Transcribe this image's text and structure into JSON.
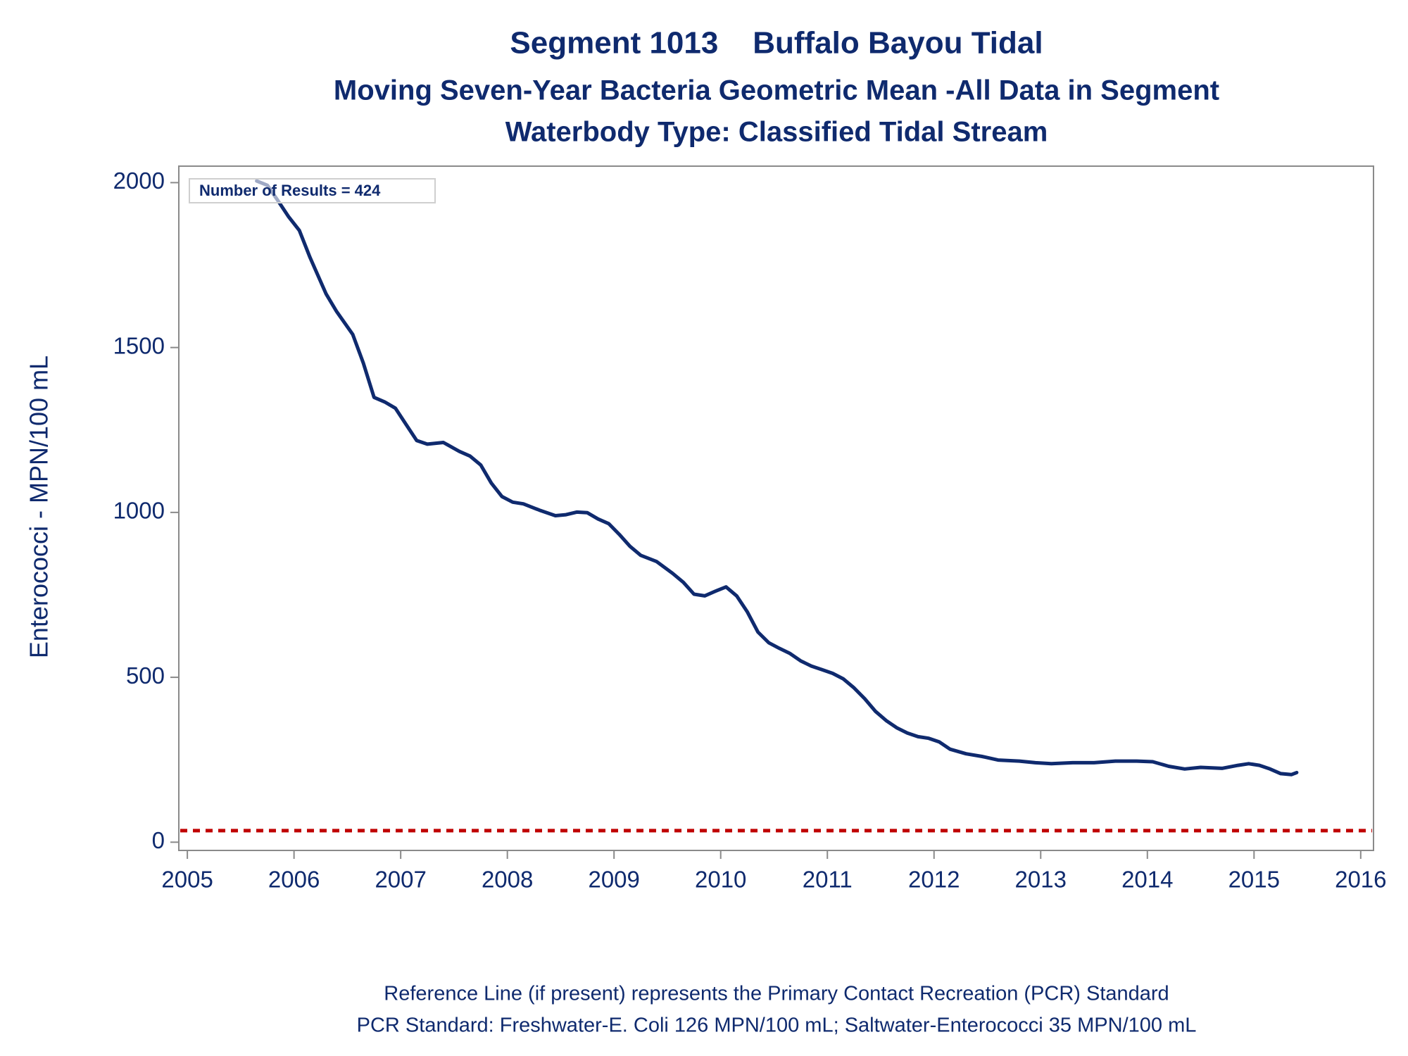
{
  "chart_data": {
    "type": "line",
    "title": "Segment 1013    Buffalo Bayou Tidal",
    "subtitles": [
      "Moving Seven-Year Bacteria Geometric Mean -All Data in Segment",
      "Waterbody Type: Classified Tidal Stream"
    ],
    "y_label": "Enterococci - MPN/100 mL",
    "annotation": "Number of Results = 424",
    "footnotes": [
      "Reference Line (if present) represents the Primary Contact Recreation (PCR) Standard",
      "PCR Standard: Freshwater-E. Coli 126 MPN/100 mL; Saltwater-Enterococci 35 MPN/100 mL"
    ],
    "x": [
      2005.65,
      2005.75,
      2005.85,
      2005.95,
      2006.05,
      2006.15,
      2006.3,
      2006.4,
      2006.55,
      2006.65,
      2006.75,
      2006.85,
      2006.95,
      2007.05,
      2007.15,
      2007.25,
      2007.4,
      2007.55,
      2007.65,
      2007.75,
      2007.85,
      2007.95,
      2008.05,
      2008.15,
      2008.3,
      2008.45,
      2008.55,
      2008.65,
      2008.75,
      2008.85,
      2008.95,
      2009.05,
      2009.15,
      2009.25,
      2009.4,
      2009.55,
      2009.65,
      2009.75,
      2009.85,
      2009.95,
      2010.05,
      2010.15,
      2010.25,
      2010.35,
      2010.45,
      2010.55,
      2010.65,
      2010.75,
      2010.85,
      2010.95,
      2011.05,
      2011.15,
      2011.25,
      2011.35,
      2011.45,
      2011.55,
      2011.65,
      2011.75,
      2011.85,
      2011.95,
      2012.05,
      2012.15,
      2012.3,
      2012.45,
      2012.6,
      2012.8,
      2012.95,
      2013.1,
      2013.3,
      2013.5,
      2013.7,
      2013.9,
      2014.05,
      2014.2,
      2014.35,
      2014.5,
      2014.7,
      2014.85,
      2014.95,
      2015.05,
      2015.15,
      2015.25,
      2015.35,
      2015.4
    ],
    "values": [
      2005,
      1992,
      1945,
      1896,
      1855,
      1773,
      1663,
      1609,
      1540,
      1453,
      1349,
      1335,
      1316,
      1267,
      1218,
      1207,
      1212,
      1185,
      1171,
      1144,
      1089,
      1048,
      1031,
      1026,
      1007,
      990,
      993,
      1001,
      999,
      980,
      966,
      933,
      897,
      870,
      851,
      815,
      788,
      752,
      747,
      761,
      774,
      747,
      698,
      637,
      605,
      588,
      572,
      550,
      534,
      523,
      512,
      495,
      468,
      435,
      397,
      369,
      347,
      331,
      320,
      315,
      304,
      282,
      268,
      260,
      249,
      246,
      241,
      238,
      241,
      241,
      246,
      246,
      244,
      230,
      222,
      227,
      224,
      233,
      238,
      233,
      222,
      208,
      205,
      211
    ],
    "color": "#0f2a6e",
    "reference_line": {
      "value": 35,
      "color": "#c00000"
    },
    "xlim": [
      2004.92,
      2016.12
    ],
    "xticks": [
      2005,
      2006,
      2007,
      2008,
      2009,
      2010,
      2011,
      2012,
      2013,
      2014,
      2015,
      2016
    ],
    "ylim": [
      -25,
      2050
    ],
    "yticks": [
      0,
      500,
      1000,
      1500,
      2000
    ]
  }
}
